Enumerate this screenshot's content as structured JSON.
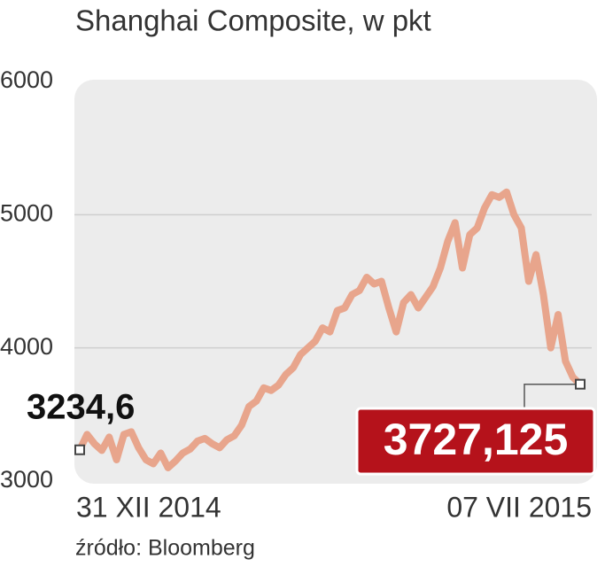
{
  "chart_data": {
    "type": "line",
    "title": "Shanghai Composite, w pkt",
    "source": "źródło: Bloomberg",
    "categories": [
      "31 XII 2014",
      null,
      null,
      null,
      null,
      null,
      null,
      null,
      null,
      null,
      null,
      null,
      null,
      null,
      null,
      null,
      null,
      null,
      null,
      null,
      null,
      null,
      null,
      null,
      null,
      null,
      null,
      null,
      null,
      null,
      null,
      null,
      null,
      null,
      null,
      null,
      null,
      null,
      null,
      null,
      null,
      null,
      null,
      null,
      null,
      null,
      null,
      null,
      null,
      null,
      null,
      null,
      null,
      null,
      null,
      null,
      null,
      null,
      null,
      null,
      null,
      null,
      null,
      null,
      null,
      null,
      null,
      null,
      "07 VII 2015"
    ],
    "series": [
      {
        "name": "Shanghai Composite",
        "color": "#e8a58c",
        "values": [
          3234.6,
          3350,
          3280,
          3230,
          3330,
          3160,
          3350,
          3370,
          3250,
          3160,
          3130,
          3210,
          3100,
          3150,
          3210,
          3240,
          3300,
          3320,
          3280,
          3250,
          3310,
          3340,
          3420,
          3560,
          3600,
          3700,
          3680,
          3720,
          3800,
          3850,
          3950,
          4000,
          4050,
          4150,
          4120,
          4280,
          4300,
          4400,
          4430,
          4530,
          4480,
          4500,
          4300,
          4120,
          4340,
          4400,
          4300,
          4380,
          4460,
          4600,
          4800,
          4940,
          4600,
          4850,
          4900,
          5050,
          5150,
          5130,
          5170,
          5000,
          4900,
          4500,
          4700,
          4400,
          4000,
          4250,
          3900,
          3780,
          3727.125
        ],
        "value_labels": [
          "3234,6",
          null,
          null,
          null,
          null,
          null,
          null,
          null,
          null,
          null,
          null,
          null,
          null,
          null,
          null,
          null,
          null,
          null,
          null,
          null,
          null,
          null,
          null,
          null,
          null,
          null,
          null,
          null,
          null,
          null,
          null,
          null,
          null,
          null,
          null,
          null,
          null,
          null,
          null,
          null,
          null,
          null,
          null,
          null,
          null,
          null,
          null,
          null,
          null,
          null,
          null,
          null,
          null,
          null,
          null,
          null,
          null,
          null,
          null,
          null,
          null,
          null,
          null,
          null,
          null,
          null,
          null,
          null,
          "3727,125"
        ]
      }
    ],
    "ylim": [
      3000,
      6000
    ],
    "yticks": [
      3000,
      4000,
      5000,
      6000
    ],
    "grid": true
  }
}
